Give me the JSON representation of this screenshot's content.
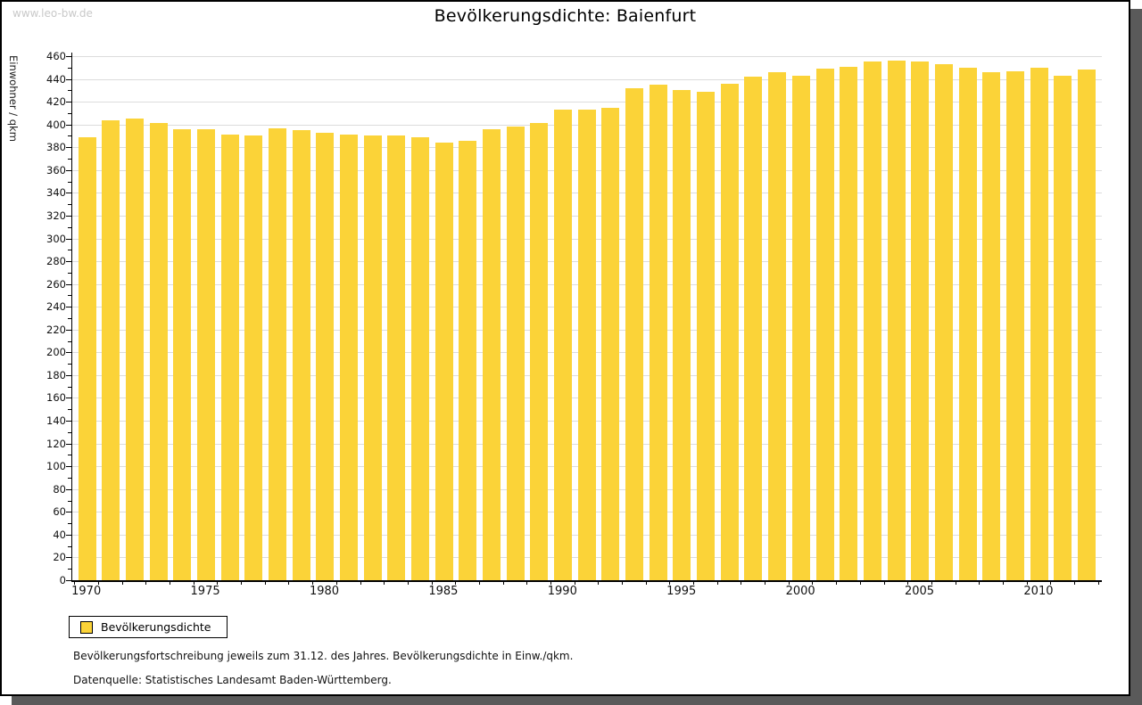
{
  "watermark": "www.leo-bw.de",
  "header": {
    "title": "Bevölkerungsdichte: Baienfurt"
  },
  "chart_data": {
    "type": "bar",
    "title": "Bevölkerungsdichte: Baienfurt",
    "xlabel": "",
    "ylabel": "Einwohner / qkm",
    "ylim": [
      0,
      460
    ],
    "ytick_step": 20,
    "yminor_step": 10,
    "grid": true,
    "bar_color": "#fbd338",
    "gridline_color": "#dcdcdc",
    "categories": [
      1970,
      1971,
      1972,
      1973,
      1974,
      1975,
      1976,
      1977,
      1978,
      1979,
      1980,
      1981,
      1982,
      1983,
      1984,
      1985,
      1986,
      1987,
      1988,
      1989,
      1990,
      1991,
      1992,
      1993,
      1994,
      1995,
      1996,
      1997,
      1998,
      1999,
      2000,
      2001,
      2002,
      2003,
      2004,
      2005,
      2006,
      2007,
      2008,
      2009,
      2010,
      2011,
      2012
    ],
    "values": [
      389,
      404,
      405,
      401,
      396,
      396,
      391,
      390,
      397,
      395,
      393,
      391,
      390,
      390,
      389,
      384,
      386,
      396,
      398,
      401,
      413,
      413,
      415,
      432,
      435,
      430,
      429,
      436,
      442,
      446,
      443,
      449,
      451,
      455,
      456,
      455,
      453,
      450,
      446,
      447,
      450,
      443,
      448
    ],
    "xtick_labels": [
      "1970",
      "1975",
      "1980",
      "1985",
      "1990",
      "1995",
      "2000",
      "2005",
      "2010"
    ],
    "legend_position": "bottom-left"
  },
  "legend": {
    "label": "Bevölkerungsdichte",
    "swatch_color": "#fbd338"
  },
  "footnotes": {
    "line1": "Bevölkerungsfortschreibung jeweils zum 31.12. des Jahres. Bevölkerungsdichte in Einw./qkm.",
    "line2": "Datenquelle: Statistisches Landesamt Baden-Württemberg."
  }
}
